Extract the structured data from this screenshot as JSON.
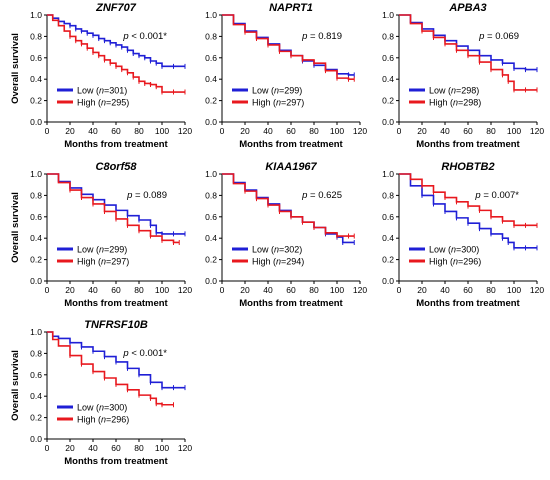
{
  "figure": {
    "y_axis_label": "Overall survival",
    "x_axis_label": "Months from treatment"
  },
  "chart_data": [
    {
      "type": "line",
      "title": "ZNF707",
      "xlabel": "Months from treatment",
      "ylabel": "Overall survival",
      "xlim": [
        0,
        120
      ],
      "ylim": [
        0,
        1.0
      ],
      "xticks": [
        0,
        20,
        40,
        60,
        80,
        100,
        120
      ],
      "yticks": [
        0.0,
        0.2,
        0.4,
        0.6,
        0.8,
        1.0
      ],
      "p_value": "p < 0.001*",
      "legend_position": "bottom-left",
      "series": [
        {
          "name": "Low (n=301)",
          "group": "Low",
          "n": "301",
          "color": "#1f1fd6",
          "x": [
            0,
            5,
            10,
            15,
            20,
            25,
            30,
            35,
            40,
            45,
            50,
            55,
            60,
            65,
            70,
            75,
            80,
            85,
            90,
            95,
            100,
            110,
            120
          ],
          "y": [
            1.0,
            0.97,
            0.94,
            0.92,
            0.9,
            0.87,
            0.85,
            0.83,
            0.81,
            0.78,
            0.76,
            0.74,
            0.72,
            0.7,
            0.67,
            0.64,
            0.62,
            0.6,
            0.57,
            0.55,
            0.52,
            0.52,
            0.52
          ]
        },
        {
          "name": "High (n=295)",
          "group": "High",
          "n": "295",
          "color": "#e8181e",
          "x": [
            0,
            5,
            10,
            15,
            20,
            25,
            30,
            35,
            40,
            45,
            50,
            55,
            60,
            65,
            70,
            75,
            80,
            85,
            90,
            95,
            100,
            110,
            120
          ],
          "y": [
            1.0,
            0.95,
            0.9,
            0.85,
            0.8,
            0.76,
            0.73,
            0.69,
            0.65,
            0.62,
            0.58,
            0.55,
            0.52,
            0.49,
            0.46,
            0.42,
            0.38,
            0.36,
            0.35,
            0.33,
            0.28,
            0.28,
            0.28
          ]
        }
      ]
    },
    {
      "type": "line",
      "title": "NAPRT1",
      "xlabel": "Months from treatment",
      "ylabel": "Overall survival",
      "xlim": [
        0,
        120
      ],
      "ylim": [
        0,
        1.0
      ],
      "xticks": [
        0,
        20,
        40,
        60,
        80,
        100,
        120
      ],
      "yticks": [
        0.0,
        0.2,
        0.4,
        0.6,
        0.8,
        1.0
      ],
      "p_value": "p = 0.819",
      "legend_position": "bottom-left",
      "series": [
        {
          "name": "Low (n=299)",
          "group": "Low",
          "n": "299",
          "color": "#1f1fd6",
          "x": [
            0,
            10,
            20,
            30,
            40,
            50,
            60,
            70,
            80,
            90,
            100,
            110,
            115
          ],
          "y": [
            1.0,
            0.92,
            0.85,
            0.79,
            0.73,
            0.67,
            0.62,
            0.57,
            0.53,
            0.49,
            0.45,
            0.44,
            0.44
          ]
        },
        {
          "name": "High (n=297)",
          "group": "High",
          "n": "297",
          "color": "#e8181e",
          "x": [
            0,
            10,
            20,
            30,
            40,
            50,
            60,
            70,
            80,
            90,
            100,
            110,
            115
          ],
          "y": [
            1.0,
            0.91,
            0.84,
            0.78,
            0.72,
            0.66,
            0.62,
            0.58,
            0.55,
            0.48,
            0.41,
            0.4,
            0.4
          ]
        }
      ]
    },
    {
      "type": "line",
      "title": "APBA3",
      "xlabel": "Months from treatment",
      "ylabel": "Overall survival",
      "xlim": [
        0,
        120
      ],
      "ylim": [
        0,
        1.0
      ],
      "xticks": [
        0,
        20,
        40,
        60,
        80,
        100,
        120
      ],
      "yticks": [
        0.0,
        0.2,
        0.4,
        0.6,
        0.8,
        1.0
      ],
      "p_value": "p = 0.069",
      "legend_position": "bottom-left",
      "series": [
        {
          "name": "Low (n=298)",
          "group": "Low",
          "n": "298",
          "color": "#1f1fd6",
          "x": [
            0,
            10,
            20,
            30,
            40,
            50,
            60,
            70,
            80,
            90,
            100,
            110,
            120
          ],
          "y": [
            1.0,
            0.93,
            0.87,
            0.81,
            0.76,
            0.71,
            0.67,
            0.62,
            0.58,
            0.55,
            0.5,
            0.49,
            0.49
          ]
        },
        {
          "name": "High (n=298)",
          "group": "High",
          "n": "298",
          "color": "#e8181e",
          "x": [
            0,
            10,
            20,
            30,
            40,
            50,
            60,
            70,
            80,
            90,
            95,
            100,
            110,
            120
          ],
          "y": [
            1.0,
            0.92,
            0.85,
            0.79,
            0.73,
            0.67,
            0.62,
            0.56,
            0.49,
            0.44,
            0.38,
            0.3,
            0.3,
            0.3
          ]
        }
      ]
    },
    {
      "type": "line",
      "title": "C8orf58",
      "xlabel": "Months from treatment",
      "ylabel": "Overall survival",
      "xlim": [
        0,
        120
      ],
      "ylim": [
        0,
        1.0
      ],
      "xticks": [
        0,
        20,
        40,
        60,
        80,
        100,
        120
      ],
      "yticks": [
        0.0,
        0.2,
        0.4,
        0.6,
        0.8,
        1.0
      ],
      "p_value": "p = 0.089",
      "legend_position": "bottom-left",
      "series": [
        {
          "name": "Low (n=299)",
          "group": "Low",
          "n": "299",
          "color": "#1f1fd6",
          "x": [
            0,
            10,
            20,
            30,
            40,
            50,
            60,
            70,
            80,
            90,
            95,
            100,
            110,
            120
          ],
          "y": [
            1.0,
            0.93,
            0.87,
            0.81,
            0.76,
            0.71,
            0.66,
            0.61,
            0.57,
            0.52,
            0.45,
            0.44,
            0.44,
            0.44
          ]
        },
        {
          "name": "High (n=297)",
          "group": "High",
          "n": "297",
          "color": "#e8181e",
          "x": [
            0,
            10,
            20,
            30,
            40,
            50,
            60,
            70,
            80,
            90,
            100,
            110,
            115
          ],
          "y": [
            1.0,
            0.92,
            0.85,
            0.78,
            0.72,
            0.65,
            0.58,
            0.52,
            0.47,
            0.42,
            0.38,
            0.36,
            0.36
          ]
        }
      ]
    },
    {
      "type": "line",
      "title": "KIAA1967",
      "xlabel": "Months from treatment",
      "ylabel": "Overall survival",
      "xlim": [
        0,
        120
      ],
      "ylim": [
        0,
        1.0
      ],
      "xticks": [
        0,
        20,
        40,
        60,
        80,
        100,
        120
      ],
      "yticks": [
        0.0,
        0.2,
        0.4,
        0.6,
        0.8,
        1.0
      ],
      "p_value": "p = 0.625",
      "legend_position": "bottom-left",
      "series": [
        {
          "name": "Low (n=302)",
          "group": "Low",
          "n": "302",
          "color": "#1f1fd6",
          "x": [
            0,
            10,
            20,
            30,
            40,
            50,
            60,
            70,
            80,
            90,
            100,
            105,
            115
          ],
          "y": [
            1.0,
            0.92,
            0.85,
            0.78,
            0.72,
            0.66,
            0.6,
            0.55,
            0.5,
            0.44,
            0.41,
            0.36,
            0.36
          ]
        },
        {
          "name": "High (n=294)",
          "group": "High",
          "n": "294",
          "color": "#e8181e",
          "x": [
            0,
            10,
            20,
            30,
            40,
            50,
            60,
            70,
            80,
            90,
            100,
            110,
            115
          ],
          "y": [
            1.0,
            0.91,
            0.84,
            0.77,
            0.71,
            0.65,
            0.6,
            0.55,
            0.5,
            0.45,
            0.42,
            0.42,
            0.42
          ]
        }
      ]
    },
    {
      "type": "line",
      "title": "RHOBTB2",
      "xlabel": "Months from treatment",
      "ylabel": "Overall survival",
      "xlim": [
        0,
        120
      ],
      "ylim": [
        0,
        1.0
      ],
      "xticks": [
        0,
        20,
        40,
        60,
        80,
        100,
        120
      ],
      "yticks": [
        0.0,
        0.2,
        0.4,
        0.6,
        0.8,
        1.0
      ],
      "p_value": "p = 0.007*",
      "legend_position": "bottom-left",
      "series": [
        {
          "name": "Low (n=300)",
          "group": "Low",
          "n": "300",
          "color": "#1f1fd6",
          "x": [
            0,
            10,
            20,
            30,
            40,
            50,
            60,
            70,
            80,
            90,
            95,
            100,
            110,
            120
          ],
          "y": [
            1.0,
            0.89,
            0.8,
            0.72,
            0.65,
            0.59,
            0.54,
            0.49,
            0.44,
            0.4,
            0.36,
            0.31,
            0.31,
            0.31
          ]
        },
        {
          "name": "High (n=296)",
          "group": "High",
          "n": "296",
          "color": "#e8181e",
          "x": [
            0,
            10,
            20,
            30,
            40,
            50,
            60,
            70,
            80,
            90,
            100,
            110,
            120
          ],
          "y": [
            1.0,
            0.95,
            0.89,
            0.83,
            0.78,
            0.74,
            0.7,
            0.66,
            0.6,
            0.56,
            0.52,
            0.52,
            0.52
          ]
        }
      ]
    },
    {
      "type": "line",
      "title": "TNFRSF10B",
      "xlabel": "Months from treatment",
      "ylabel": "Overall survival",
      "xlim": [
        0,
        120
      ],
      "ylim": [
        0,
        1.0
      ],
      "xticks": [
        0,
        20,
        40,
        60,
        80,
        100,
        120
      ],
      "yticks": [
        0.0,
        0.2,
        0.4,
        0.6,
        0.8,
        1.0
      ],
      "p_value": "p < 0.001*",
      "legend_position": "bottom-left",
      "series": [
        {
          "name": "Low (n=300)",
          "group": "Low",
          "n": "300",
          "color": "#1f1fd6",
          "x": [
            0,
            5,
            10,
            20,
            30,
            40,
            50,
            60,
            70,
            80,
            90,
            100,
            110,
            120
          ],
          "y": [
            1.0,
            0.96,
            0.94,
            0.9,
            0.86,
            0.82,
            0.77,
            0.72,
            0.66,
            0.6,
            0.53,
            0.48,
            0.48,
            0.48
          ]
        },
        {
          "name": "High (n=296)",
          "group": "High",
          "n": "296",
          "color": "#e8181e",
          "x": [
            0,
            5,
            10,
            20,
            30,
            40,
            50,
            60,
            70,
            80,
            90,
            95,
            100,
            110
          ],
          "y": [
            1.0,
            0.93,
            0.87,
            0.78,
            0.7,
            0.63,
            0.57,
            0.51,
            0.46,
            0.41,
            0.38,
            0.33,
            0.32,
            0.32
          ]
        }
      ]
    }
  ]
}
